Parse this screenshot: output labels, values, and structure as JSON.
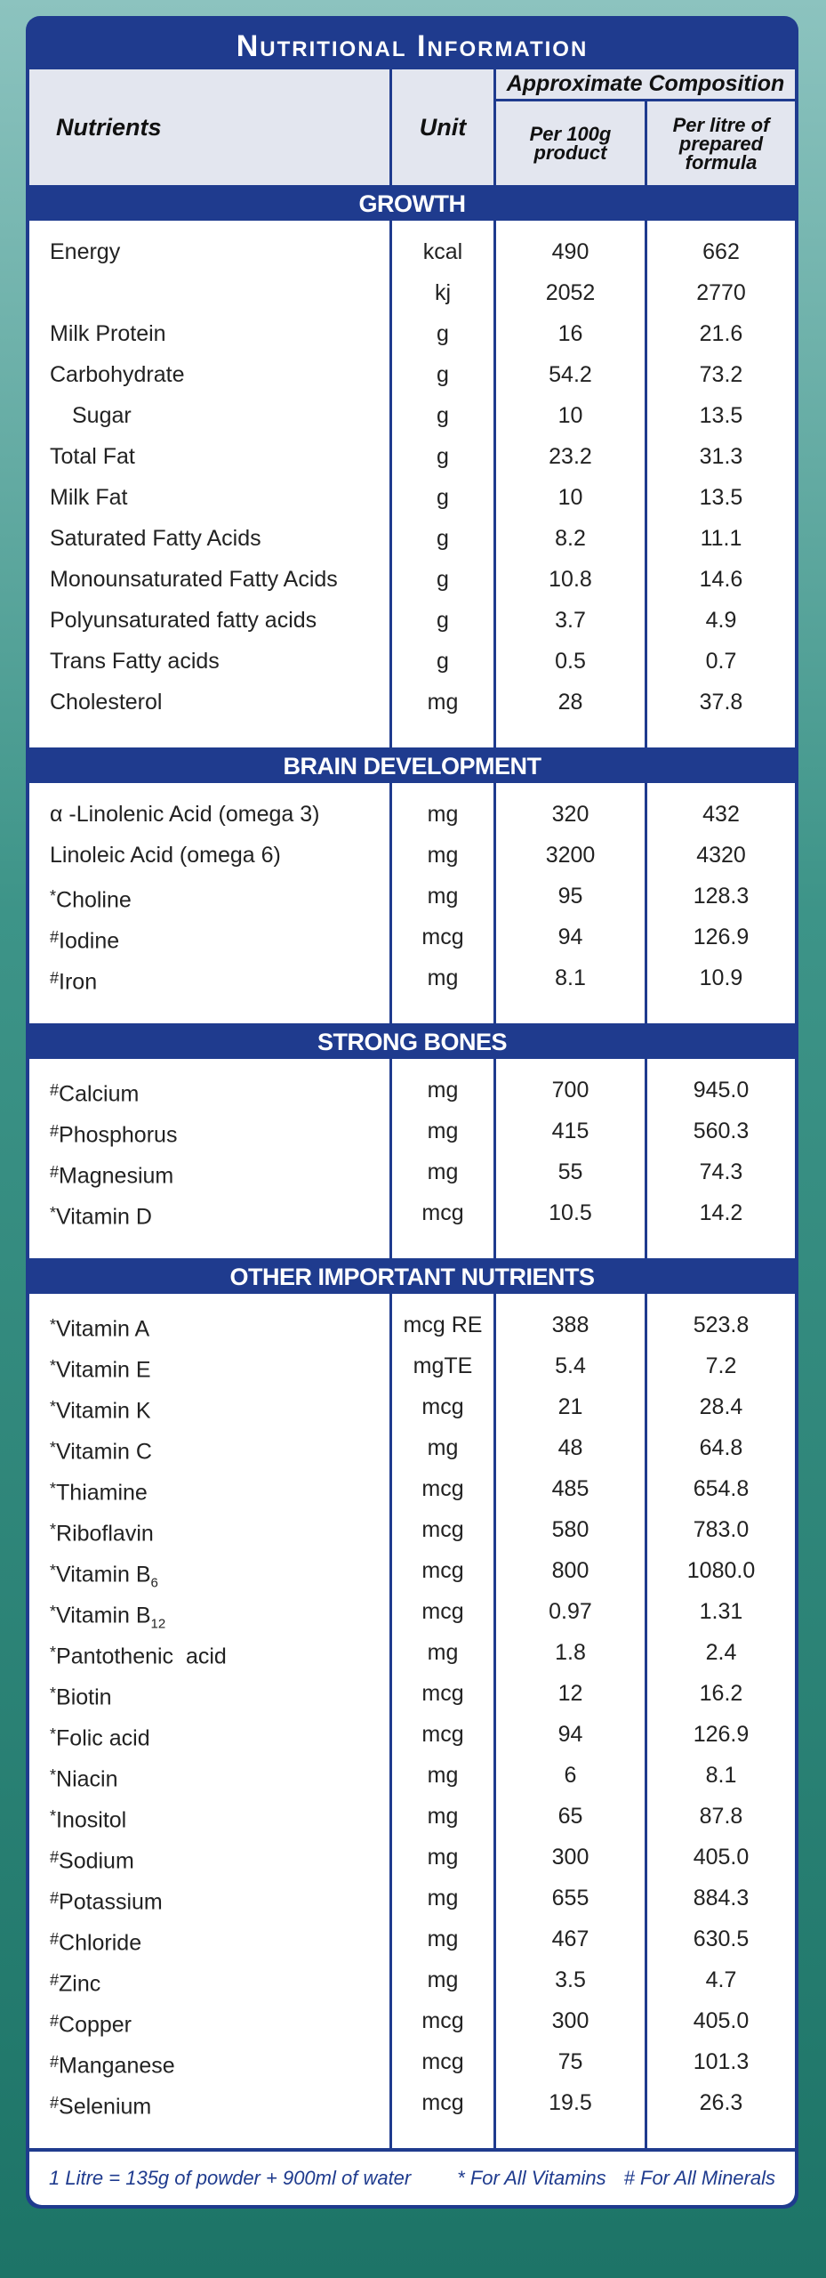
{
  "title": "Nutritional Information",
  "header": {
    "nutrients": "Nutrients",
    "unit": "Unit",
    "composition": "Approximate Composition",
    "per100g": "Per 100g product",
    "perLitre": "Per litre of prepared formula"
  },
  "sections": [
    {
      "title": "GROWTH",
      "rows": [
        {
          "name": "Energy",
          "unit": "kcal",
          "per100g": "490",
          "perLitre": "662"
        },
        {
          "unit": "kj",
          "per100g": "2052",
          "perLitre": "2770"
        },
        {
          "name": "Milk Protein",
          "unit": "g",
          "per100g": "16",
          "perLitre": "21.6"
        },
        {
          "name": "Carbohydrate",
          "unit": "g",
          "per100g": "54.2",
          "perLitre": "73.2"
        },
        {
          "name": "Sugar",
          "indent": true,
          "unit": "g",
          "per100g": "10",
          "perLitre": "13.5"
        },
        {
          "name": "Total Fat",
          "unit": "g",
          "per100g": "23.2",
          "perLitre": "31.3"
        },
        {
          "name": "Milk Fat",
          "unit": "g",
          "per100g": "10",
          "perLitre": "13.5"
        },
        {
          "name": "Saturated Fatty Acids",
          "unit": "g",
          "per100g": "8.2",
          "perLitre": "11.1"
        },
        {
          "name": "Monounsaturated Fatty Acids",
          "unit": "g",
          "per100g": "10.8",
          "perLitre": "14.6"
        },
        {
          "name": "Polyunsaturated fatty acids",
          "unit": "g",
          "per100g": "3.7",
          "perLitre": "4.9"
        },
        {
          "name": "Trans Fatty acids",
          "unit": "g",
          "per100g": "0.5",
          "perLitre": "0.7"
        },
        {
          "name": "Cholesterol",
          "unit": "mg",
          "per100g": "28",
          "perLitre": "37.8"
        }
      ]
    },
    {
      "title": "BRAIN DEVELOPMENT",
      "rows": [
        {
          "name": "α -Linolenic Acid (omega 3)",
          "unit": "mg",
          "per100g": "320",
          "perLitre": "432"
        },
        {
          "name": "Linoleic Acid (omega 6)",
          "unit": "mg",
          "per100g": "3200",
          "perLitre": "4320"
        },
        {
          "mark": "*",
          "name": "Choline",
          "unit": "mg",
          "per100g": "95",
          "perLitre": "128.3"
        },
        {
          "mark": "#",
          "name": "Iodine",
          "unit": "mcg",
          "per100g": "94",
          "perLitre": "126.9"
        },
        {
          "mark": "#",
          "name": "Iron",
          "unit": "mg",
          "per100g": "8.1",
          "perLitre": "10.9"
        }
      ]
    },
    {
      "title": "STRONG BONES",
      "rows": [
        {
          "mark": "#",
          "name": "Calcium",
          "unit": "mg",
          "per100g": "700",
          "perLitre": "945.0"
        },
        {
          "mark": "#",
          "name": "Phosphorus",
          "unit": "mg",
          "per100g": "415",
          "perLitre": "560.3"
        },
        {
          "mark": "#",
          "name": "Magnesium",
          "unit": "mg",
          "per100g": "55",
          "perLitre": "74.3"
        },
        {
          "mark": "*",
          "name": "Vitamin D",
          "unit": "mcg",
          "per100g": "10.5",
          "perLitre": "14.2"
        }
      ]
    },
    {
      "title": "OTHER IMPORTANT NUTRIENTS",
      "rows": [
        {
          "mark": "*",
          "name": "Vitamin A",
          "unit": "mcg RE",
          "per100g": "388",
          "perLitre": "523.8"
        },
        {
          "mark": "*",
          "name": "Vitamin E",
          "unit": "mgTE",
          "per100g": "5.4",
          "perLitre": "7.2"
        },
        {
          "mark": "*",
          "name": "Vitamin K",
          "unit": "mcg",
          "per100g": "21",
          "perLitre": "28.4"
        },
        {
          "mark": "*",
          "name": "Vitamin C",
          "unit": "mg",
          "per100g": "48",
          "perLitre": "64.8"
        },
        {
          "mark": "*",
          "name": "Thiamine",
          "unit": "mcg",
          "per100g": "485",
          "perLitre": "654.8"
        },
        {
          "mark": "*",
          "name": "Riboflavin",
          "unit": "mcg",
          "per100g": "580",
          "perLitre": "783.0"
        },
        {
          "mark": "*",
          "name": "Vitamin B",
          "sub": "6",
          "unit": "mcg",
          "per100g": "800",
          "perLitre": "1080.0"
        },
        {
          "mark": "*",
          "name": "Vitamin B",
          "sub": "12",
          "unit": "mcg",
          "per100g": "0.97",
          "perLitre": "1.31"
        },
        {
          "mark": "*",
          "name": "Pantothenic  acid",
          "unit": "mg",
          "per100g": "1.8",
          "perLitre": "2.4"
        },
        {
          "mark": "*",
          "name": "Biotin",
          "unit": "mcg",
          "per100g": "12",
          "perLitre": "16.2"
        },
        {
          "mark": "*",
          "name": "Folic acid",
          "unit": "mcg",
          "per100g": "94",
          "perLitre": "126.9"
        },
        {
          "mark": "*",
          "name": "Niacin",
          "unit": "mg",
          "per100g": "6",
          "perLitre": "8.1"
        },
        {
          "mark": "*",
          "name": "Inositol",
          "unit": "mg",
          "per100g": "65",
          "perLitre": "87.8"
        },
        {
          "mark": "#",
          "name": "Sodium",
          "unit": "mg",
          "per100g": "300",
          "perLitre": "405.0"
        },
        {
          "mark": "#",
          "name": "Potassium",
          "unit": "mg",
          "per100g": "655",
          "perLitre": "884.3"
        },
        {
          "mark": "#",
          "name": "Chloride",
          "unit": "mg",
          "per100g": "467",
          "perLitre": "630.5"
        },
        {
          "mark": "#",
          "name": "Zinc",
          "unit": "mg",
          "per100g": "3.5",
          "perLitre": "4.7"
        },
        {
          "mark": "#",
          "name": "Copper",
          "unit": "mcg",
          "per100g": "300",
          "perLitre": "405.0"
        },
        {
          "mark": "#",
          "name": "Manganese",
          "unit": "mcg",
          "per100g": "75",
          "perLitre": "101.3"
        },
        {
          "mark": "#",
          "name": "Selenium",
          "unit": "mcg",
          "per100g": "19.5",
          "perLitre": "26.3"
        }
      ]
    }
  ],
  "footer": {
    "note": "1 Litre = 135g of powder + 900ml of water",
    "vitamins": "* For All Vitamins",
    "minerals": "# For All Minerals"
  }
}
